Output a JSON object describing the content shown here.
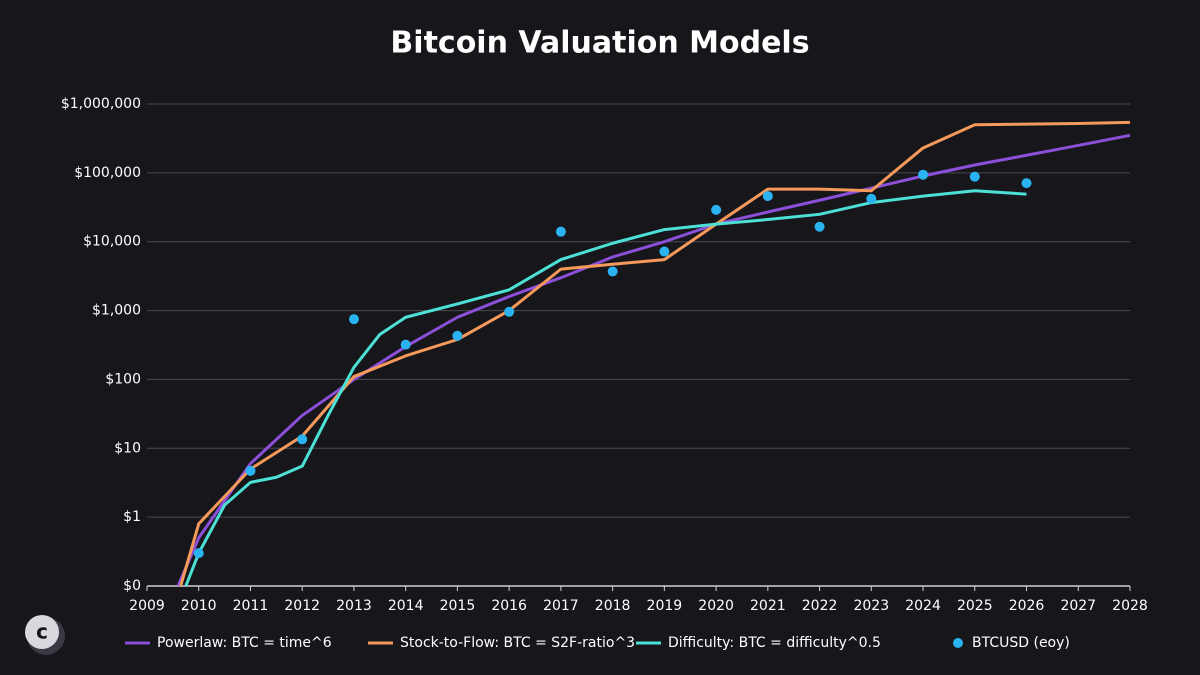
{
  "chart_data": {
    "type": "line",
    "title": "Bitcoin Valuation Models",
    "log_y": true,
    "grid": true,
    "xlim": [
      2009,
      2028
    ],
    "xticks": [
      2009,
      2010,
      2011,
      2012,
      2013,
      2014,
      2015,
      2016,
      2017,
      2018,
      2019,
      2020,
      2021,
      2022,
      2023,
      2024,
      2025,
      2026,
      2027,
      2028
    ],
    "ylim": [
      0.1,
      1000000
    ],
    "yticks": [
      {
        "value": 0.1,
        "label": "$0"
      },
      {
        "value": 1,
        "label": "$1"
      },
      {
        "value": 10,
        "label": "$10"
      },
      {
        "value": 100,
        "label": "$100"
      },
      {
        "value": 1000,
        "label": "$1,000"
      },
      {
        "value": 10000,
        "label": "$10,000"
      },
      {
        "value": 100000,
        "label": "$100,000"
      },
      {
        "value": 1000000,
        "label": "$1,000,000"
      }
    ],
    "legend": "bottom",
    "series": [
      {
        "name": "Powerlaw: BTC = time^6",
        "color": "#8b4fd8",
        "type": "line",
        "x": [
          2009.6,
          2010,
          2011,
          2012,
          2013,
          2014,
          2015,
          2016,
          2017,
          2018,
          2019,
          2020,
          2021,
          2022,
          2023,
          2024,
          2025,
          2026,
          2027,
          2028
        ],
        "values": [
          0.1,
          0.5,
          6,
          30,
          100,
          300,
          800,
          1600,
          3000,
          6000,
          10000,
          18000,
          27000,
          40000,
          60000,
          90000,
          130000,
          180000,
          250000,
          350000
        ]
      },
      {
        "name": "Stock-to-Flow: BTC = S2F-ratio^3",
        "color": "#f59a5a",
        "type": "line",
        "x": [
          2009.65,
          2010,
          2011,
          2012,
          2013,
          2014,
          2015,
          2016,
          2017,
          2018,
          2019,
          2020,
          2021,
          2022,
          2023,
          2024,
          2025,
          2026,
          2027,
          2028
        ],
        "values": [
          0.1,
          0.8,
          5,
          15,
          110,
          220,
          380,
          1000,
          4000,
          4700,
          5500,
          18000,
          58000,
          58000,
          55000,
          230000,
          500000,
          510000,
          520000,
          540000
        ]
      },
      {
        "name": "Difficulty: BTC = difficulty^0.5",
        "color": "#4de0d6",
        "type": "line",
        "x": [
          2009.75,
          2010,
          2010.5,
          2011,
          2011.5,
          2012,
          2012.5,
          2013,
          2013.5,
          2014,
          2015,
          2016,
          2017,
          2018,
          2019,
          2020,
          2021,
          2022,
          2023,
          2024,
          2025,
          2026
        ],
        "values": [
          0.1,
          0.3,
          1.5,
          3.2,
          3.8,
          5.5,
          30,
          150,
          450,
          800,
          1250,
          2000,
          5500,
          9500,
          15000,
          18000,
          21000,
          25000,
          37000,
          46000,
          55000,
          49000
        ]
      },
      {
        "name": "BTCUSD (eoy)",
        "color": "#2ab3f0",
        "type": "scatter",
        "x": [
          2010,
          2011,
          2012,
          2013,
          2014,
          2015,
          2016,
          2017,
          2018,
          2019,
          2020,
          2021,
          2022,
          2023,
          2024,
          2025,
          2026
        ],
        "values": [
          0.3,
          4.7,
          13.5,
          750,
          320,
          430,
          960,
          14000,
          3700,
          7200,
          29000,
          46000,
          16500,
          42000,
          94000,
          88000,
          71000
        ]
      }
    ]
  }
}
